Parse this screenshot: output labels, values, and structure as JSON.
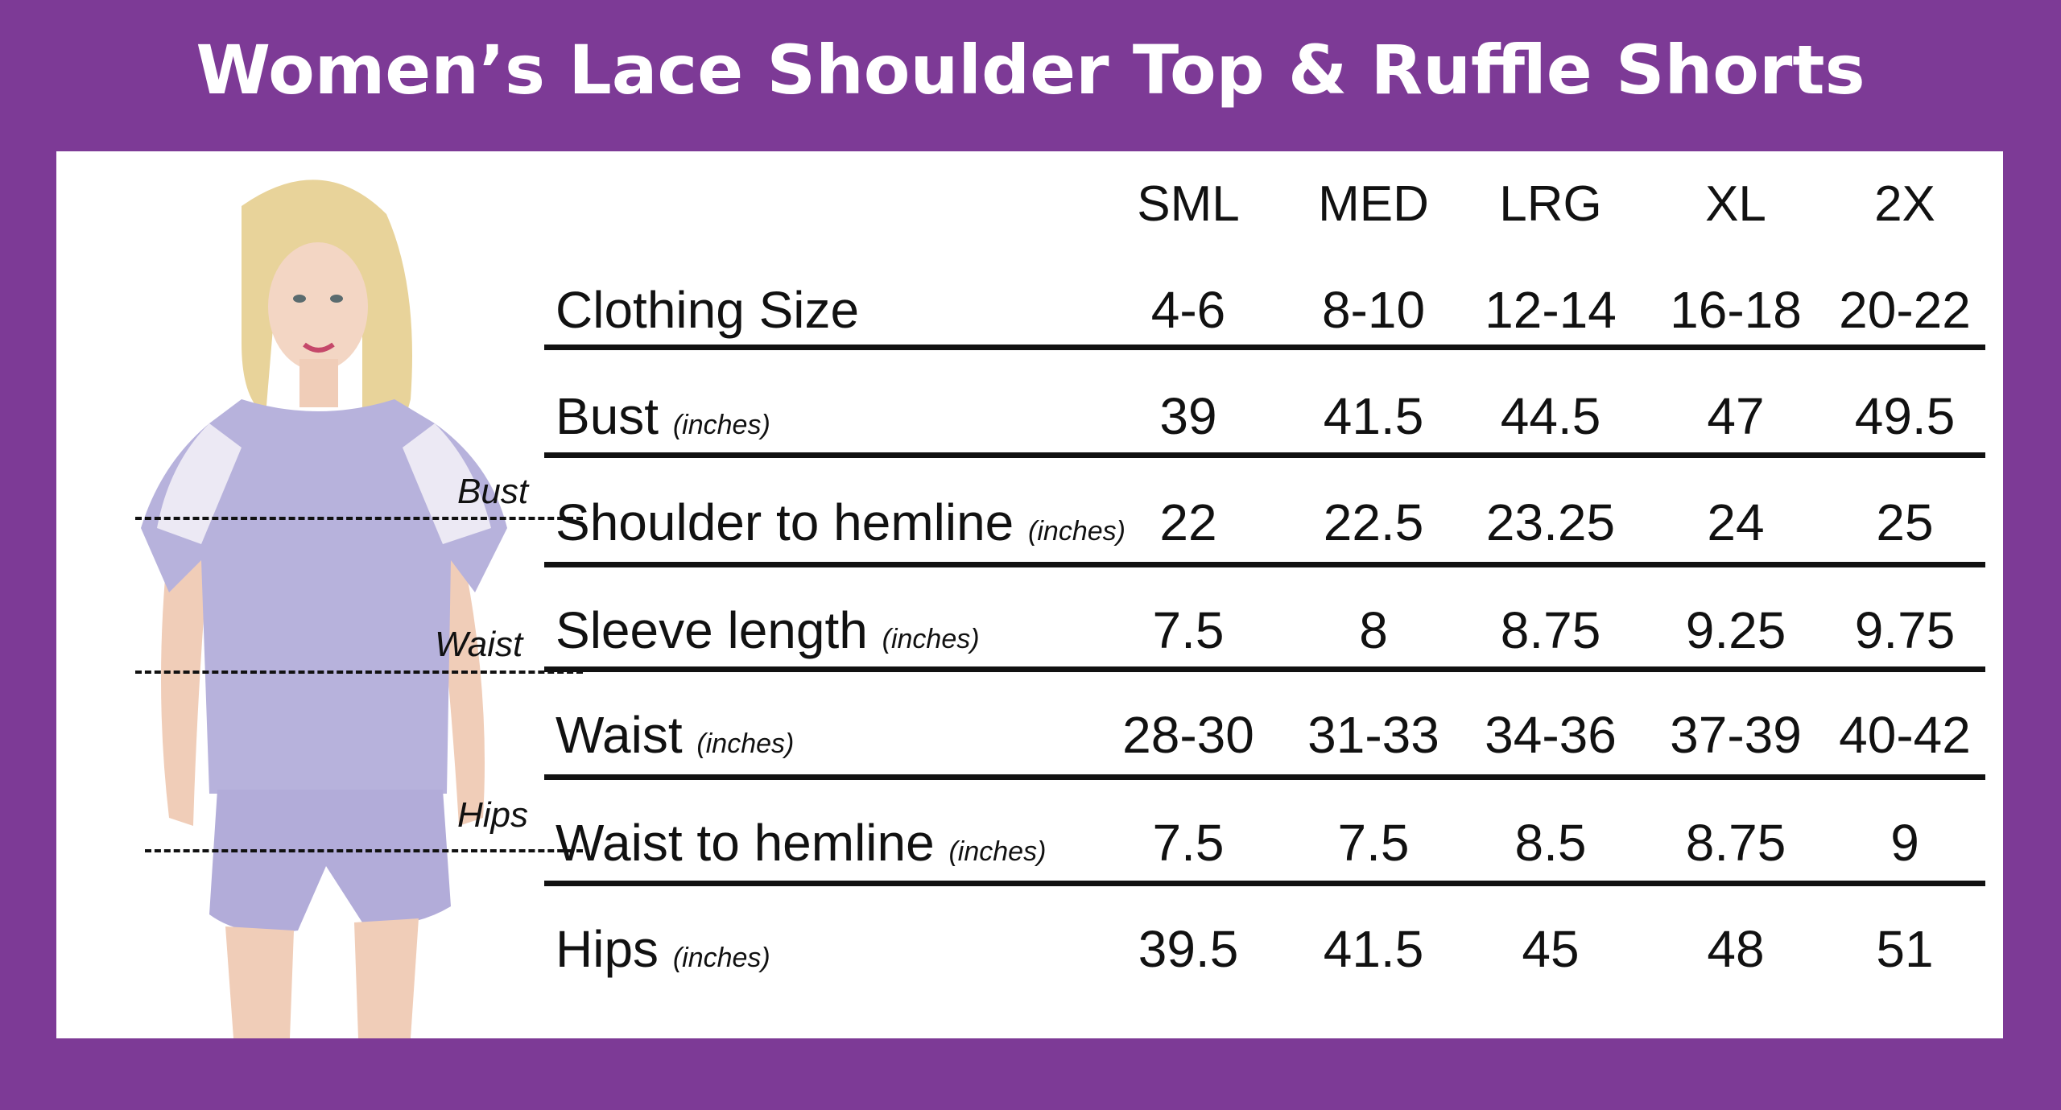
{
  "title": "Women’s Lace Shoulder Top & Ruffle Shorts",
  "colors": {
    "frame": "#7d3a96",
    "panel": "#ffffff",
    "text": "#111111",
    "garment": "#b7b2dc"
  },
  "measure_labels": {
    "bust": "Bust",
    "waist": "Waist",
    "hips": "Hips"
  },
  "sizes": [
    "SML",
    "MED",
    "LRG",
    "XL",
    "2X"
  ],
  "rows": [
    {
      "label": "Clothing Size",
      "unit": "",
      "values": [
        "4-6",
        "8-10",
        "12-14",
        "16-18",
        "20-22"
      ]
    },
    {
      "label": "Bust",
      "unit": "(inches)",
      "values": [
        "39",
        "41.5",
        "44.5",
        "47",
        "49.5"
      ]
    },
    {
      "label": "Shoulder to hemline",
      "unit": "(inches)",
      "values": [
        "22",
        "22.5",
        "23.25",
        "24",
        "25"
      ]
    },
    {
      "label": "Sleeve length",
      "unit": "(inches)",
      "values": [
        "7.5",
        "8",
        "8.75",
        "9.25",
        "9.75"
      ]
    },
    {
      "label": "Waist",
      "unit": "(inches)",
      "values": [
        "28-30",
        "31-33",
        "34-36",
        "37-39",
        "40-42"
      ]
    },
    {
      "label": "Waist to hemline",
      "unit": "(inches)",
      "values": [
        "7.5",
        "7.5",
        "8.5",
        "8.75",
        "9"
      ]
    },
    {
      "label": "Hips",
      "unit": "(inches)",
      "values": [
        "39.5",
        "41.5",
        "45",
        "48",
        "51"
      ]
    }
  ]
}
